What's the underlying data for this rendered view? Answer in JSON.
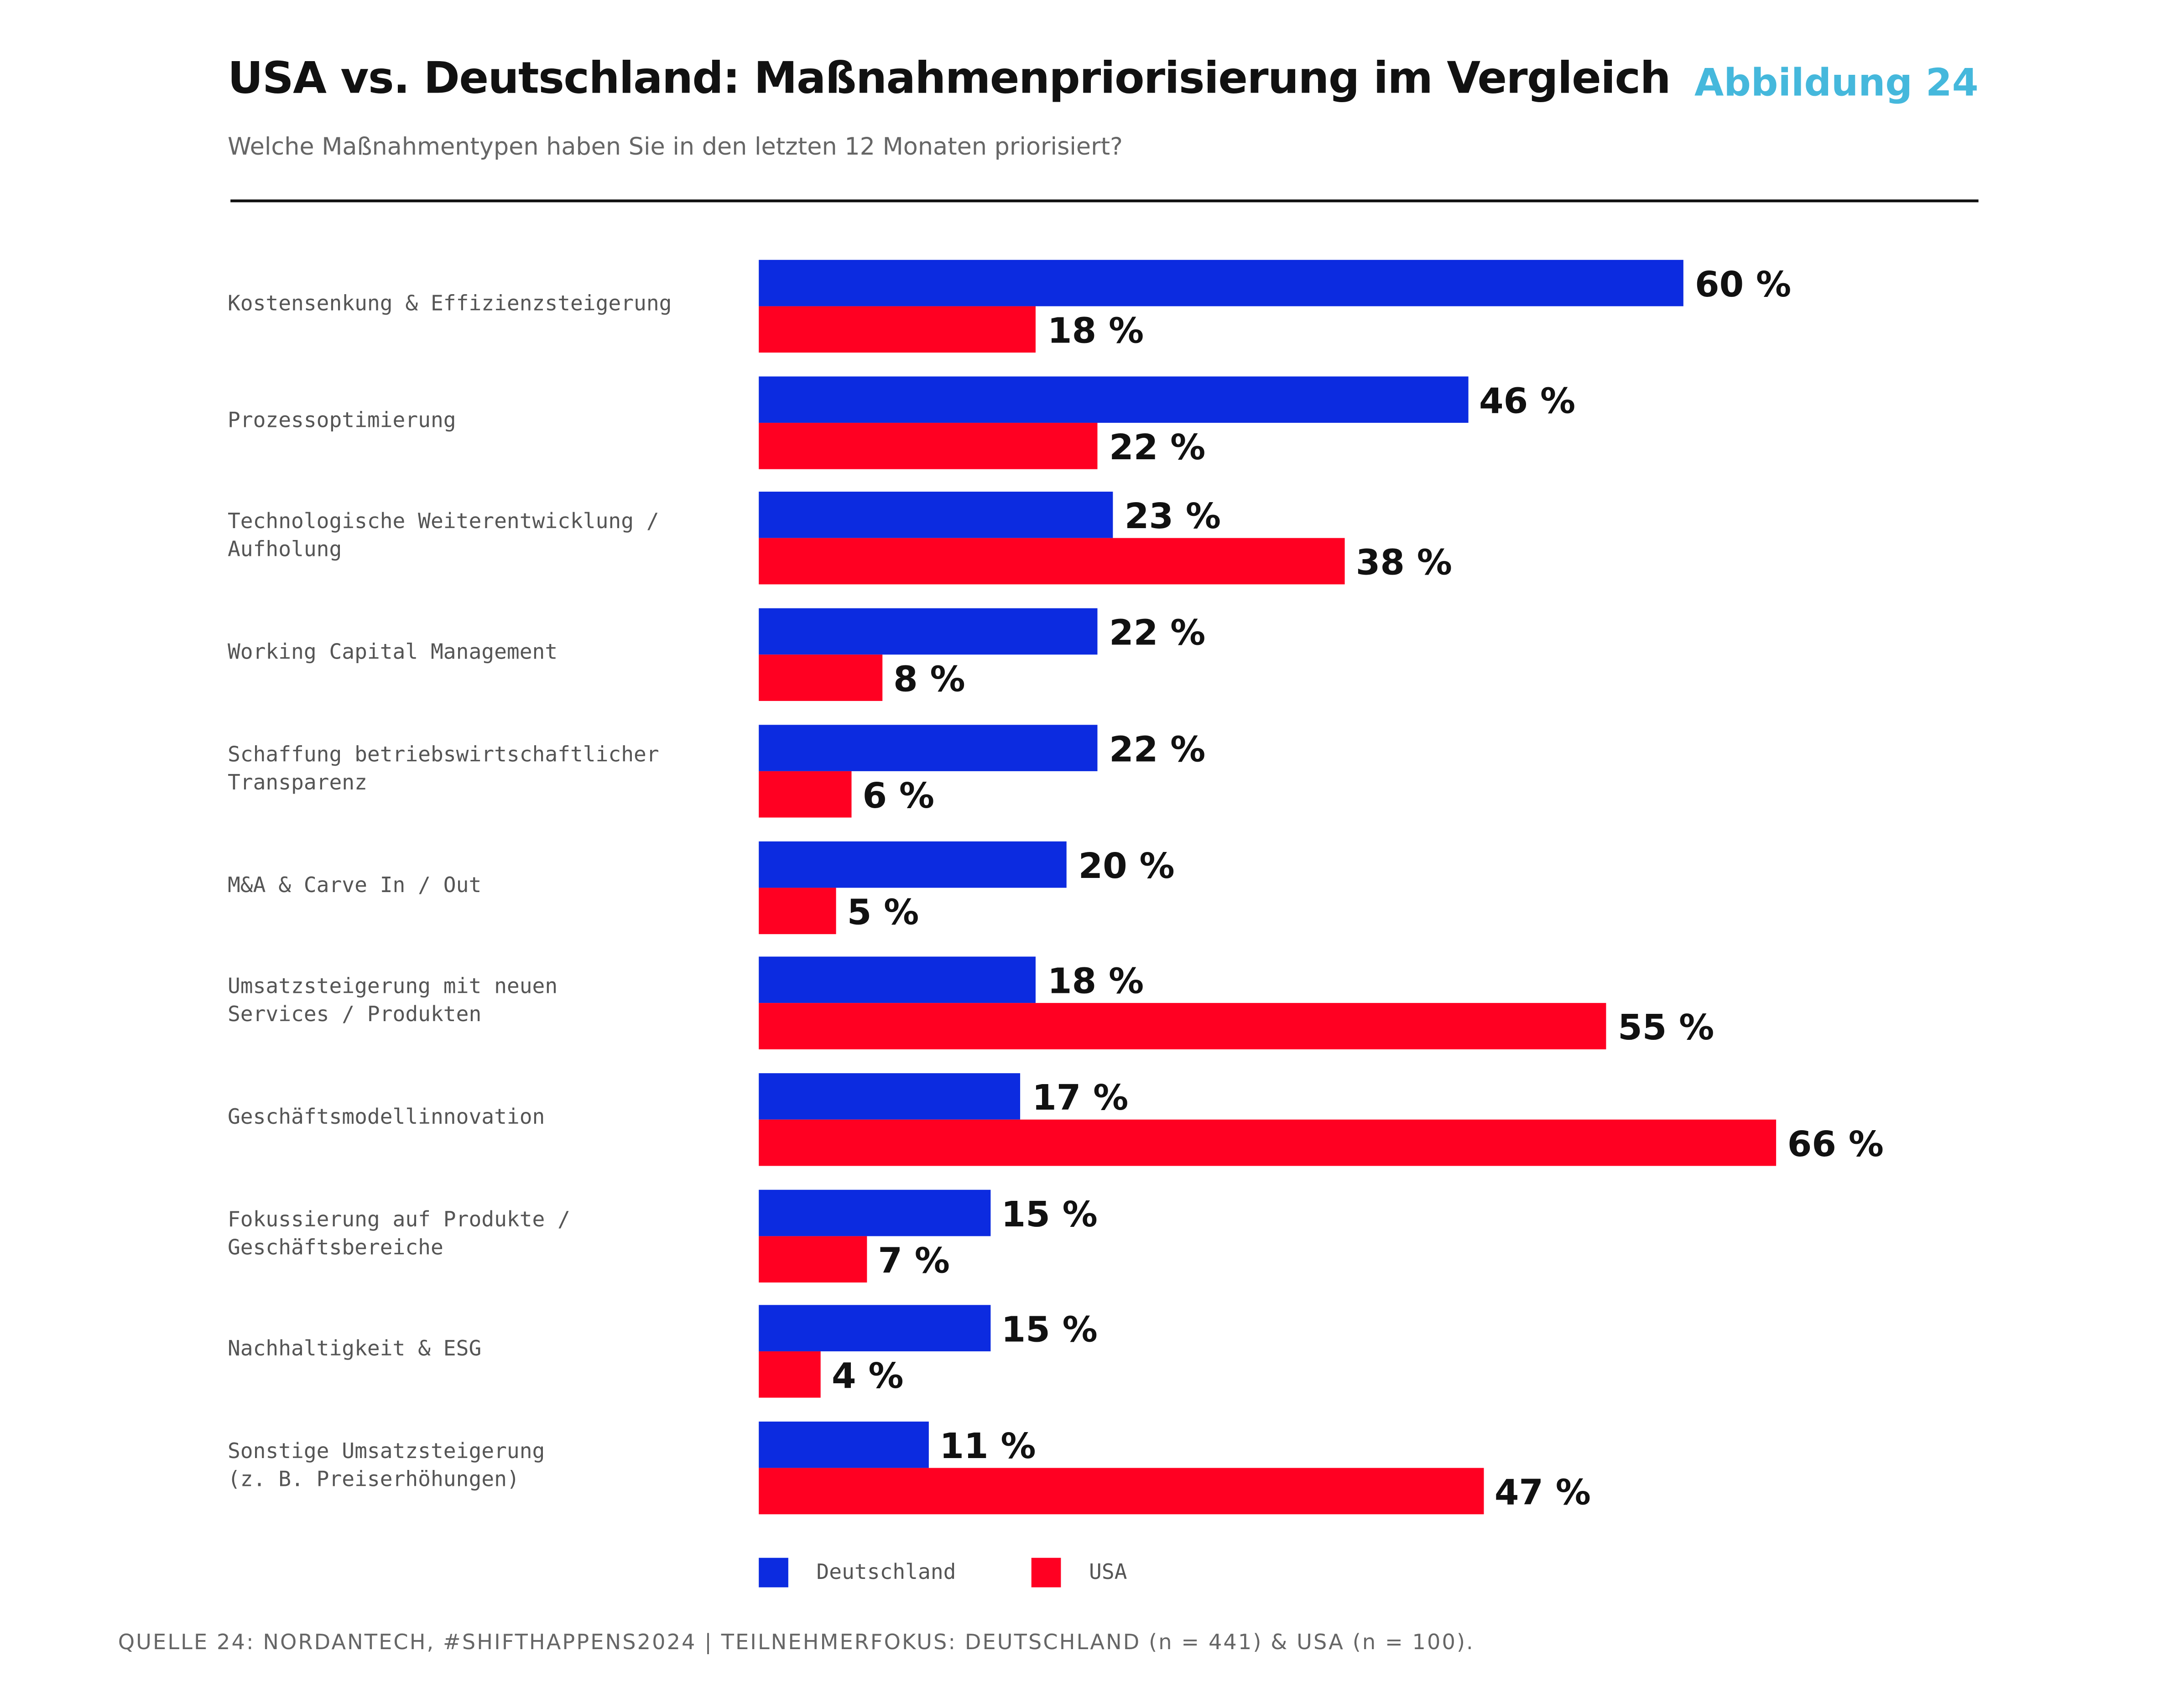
{
  "header": {
    "title": "USA vs. Deutschland: Maßnahmenpriorisierung im Vergleich",
    "figure_label": "Abbildung 24",
    "subtitle": "Welche Maßnahmentypen haben Sie in den letzten 12 Monaten priorisiert?"
  },
  "chart_data": {
    "type": "bar",
    "orientation": "horizontal",
    "categories": [
      "Kostensenkung & Effizienzsteigerung",
      "Prozessoptimierung",
      "Technologische Weiterentwicklung /\nAufholung",
      "Working Capital Management",
      "Schaffung betriebswirtschaftlicher\nTransparenz",
      "M&A & Carve In / Out",
      "Umsatzsteigerung mit neuen\nServices / Produkten",
      "Geschäftsmodellinnovation",
      "Fokussierung auf Produkte /\nGeschäftsbereiche",
      "Nachhaltigkeit & ESG",
      "Sonstige Umsatzsteigerung\n(z. B. Preiserhöhungen)"
    ],
    "series": [
      {
        "name": "Deutschland",
        "color": "#0c2be0",
        "values": [
          60,
          46,
          23,
          22,
          22,
          20,
          18,
          17,
          15,
          15,
          11
        ]
      },
      {
        "name": "USA",
        "color": "#ff0022",
        "values": [
          18,
          22,
          38,
          8,
          6,
          5,
          55,
          66,
          7,
          4,
          47
        ]
      }
    ],
    "value_suffix": " %",
    "legend": "bottom",
    "grid": false
  },
  "footer": {
    "source": "QUELLE 24: NORDANTECH, #SHIFTHAPPENS2024 | TEILNEHMERFOKUS: DEUTSCHLAND (n = 441) & USA (n = 100)."
  }
}
